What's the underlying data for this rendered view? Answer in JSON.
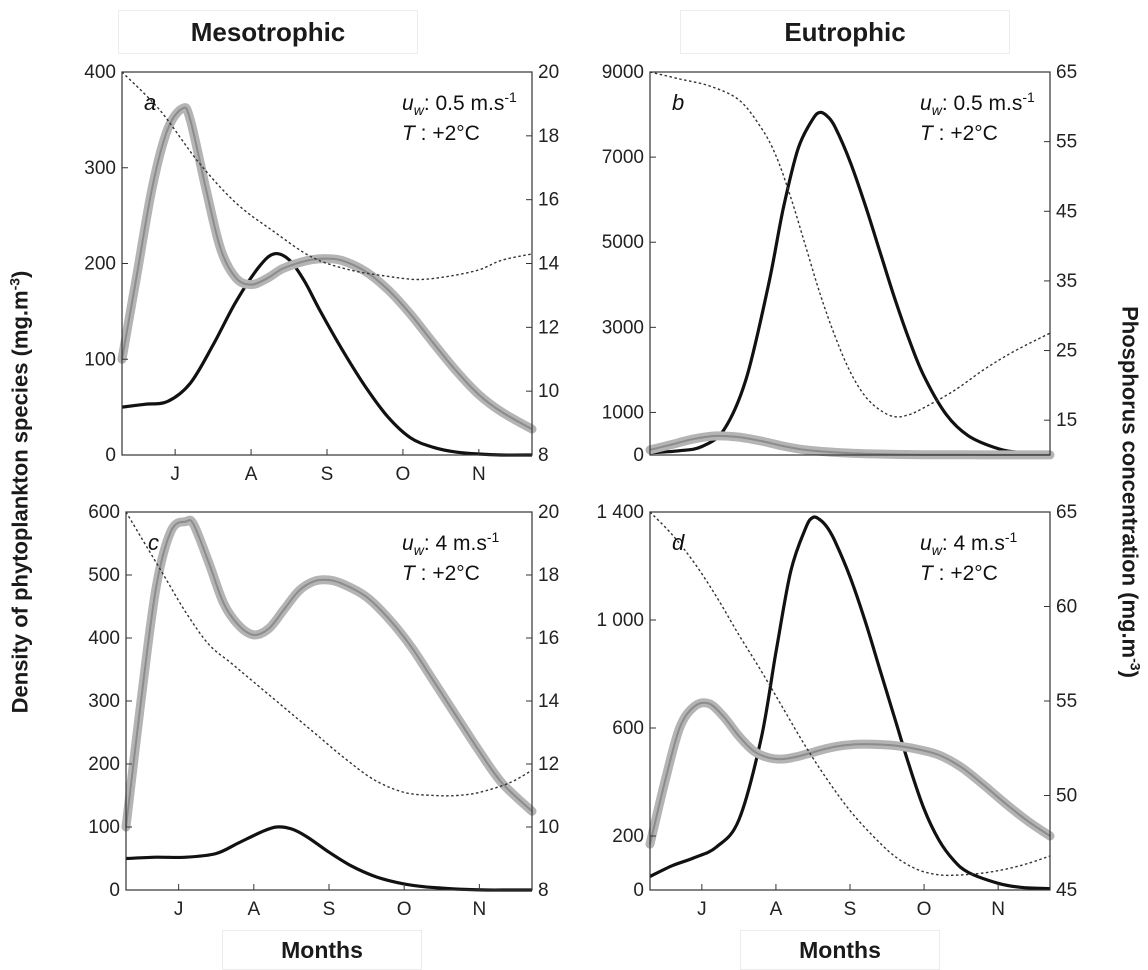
{
  "col_titles": {
    "left": "Mesotrophic",
    "right": "Eutrophic"
  },
  "ylabel_left": "Density of phytoplankton  species (mg.m-3)",
  "ylabel_right": "Phosphorus concentration  (mg.m-3)",
  "xlabel": "Months",
  "colors": {
    "species_black": "#111111",
    "species_gray": "#8c8c8c",
    "band_gray": "#b4b4b4",
    "phosphorus": "#333333"
  },
  "chart_data": [
    {
      "type": "line",
      "panel": "a",
      "column": "Mesotrophic",
      "annotation": {
        "uw": "0.5 m.s-1",
        "T": "+2°C"
      },
      "x_ticks": [
        "J",
        "A",
        "S",
        "O",
        "N"
      ],
      "x_tick_pos": [
        1,
        2,
        3,
        4,
        5
      ],
      "xlim": [
        0.3,
        5.7
      ],
      "ylim": [
        0,
        400
      ],
      "yticks": [
        "0",
        "100",
        "200",
        "300",
        "400"
      ],
      "ytick_values": [
        0,
        100,
        200,
        300,
        400
      ],
      "y2lim": [
        8,
        20
      ],
      "y2ticks": [
        "8",
        "10",
        "12",
        "14",
        "16",
        "18",
        "20"
      ],
      "y2tick_values": [
        8,
        10,
        12,
        14,
        16,
        18,
        20
      ],
      "series": [
        {
          "axis": "left",
          "style": "black",
          "x": [
            0.3,
            0.6,
            0.9,
            1.2,
            1.5,
            1.8,
            2.1,
            2.3,
            2.5,
            2.7,
            2.9,
            3.2,
            3.5,
            3.8,
            4.1,
            4.4,
            4.7,
            5.0,
            5.3,
            5.7
          ],
          "y": [
            50,
            53,
            56,
            75,
            115,
            160,
            196,
            210,
            204,
            182,
            152,
            110,
            72,
            40,
            18,
            8,
            3,
            1,
            0,
            0
          ]
        },
        {
          "axis": "left",
          "style": "gray",
          "x": [
            0.3,
            0.5,
            0.7,
            0.9,
            1.1,
            1.2,
            1.4,
            1.6,
            1.8,
            2.0,
            2.2,
            2.4,
            2.6,
            2.8,
            3.0,
            3.2,
            3.5,
            3.8,
            4.1,
            4.4,
            4.7,
            5.0,
            5.3,
            5.7
          ],
          "y": [
            100,
            190,
            280,
            340,
            362,
            350,
            280,
            215,
            185,
            178,
            184,
            194,
            200,
            204,
            205,
            203,
            192,
            173,
            147,
            117,
            88,
            63,
            45,
            27
          ]
        },
        {
          "axis": "right",
          "style": "dotted",
          "x": [
            0.3,
            0.8,
            1.3,
            1.8,
            2.3,
            2.8,
            3.3,
            3.8,
            4.2,
            4.6,
            5.0,
            5.3,
            5.7
          ],
          "y": [
            20,
            18.8,
            17.2,
            15.9,
            15.0,
            14.2,
            13.8,
            13.6,
            13.5,
            13.6,
            13.8,
            14.1,
            14.3
          ]
        }
      ]
    },
    {
      "type": "line",
      "panel": "b",
      "column": "Eutrophic",
      "annotation": {
        "uw": "0.5 m.s-1",
        "T": "+2°C"
      },
      "x_ticks": [],
      "x_tick_pos": [],
      "xlim": [
        0.3,
        5.7
      ],
      "ylim": [
        0,
        9000
      ],
      "yticks": [
        "0",
        "1000",
        "3000",
        "5000",
        "7000",
        "9000"
      ],
      "ytick_values": [
        0,
        1000,
        3000,
        5000,
        7000,
        9000
      ],
      "y2lim": [
        10,
        65
      ],
      "y2ticks": [
        "15",
        "25",
        "35",
        "45",
        "55",
        "65"
      ],
      "y2tick_values": [
        15,
        25,
        35,
        45,
        55,
        65
      ],
      "series": [
        {
          "axis": "left",
          "style": "black",
          "x": [
            0.3,
            0.7,
            1.0,
            1.3,
            1.6,
            1.9,
            2.1,
            2.3,
            2.5,
            2.6,
            2.7,
            2.8,
            3.0,
            3.2,
            3.4,
            3.6,
            3.8,
            4.0,
            4.3,
            4.6,
            5.0,
            5.3,
            5.7
          ],
          "y": [
            50,
            100,
            200,
            600,
            1800,
            4000,
            5800,
            7200,
            7900,
            8050,
            7950,
            7700,
            6900,
            5900,
            4800,
            3700,
            2700,
            1850,
            950,
            450,
            150,
            60,
            30
          ]
        },
        {
          "axis": "left",
          "style": "gray",
          "x": [
            0.3,
            0.6,
            0.9,
            1.2,
            1.5,
            1.8,
            2.1,
            2.4,
            2.8,
            3.2,
            3.6,
            4.0,
            4.6,
            5.2,
            5.7
          ],
          "y": [
            120,
            250,
            380,
            450,
            420,
            330,
            210,
            120,
            60,
            30,
            15,
            8,
            5,
            3,
            2
          ]
        },
        {
          "axis": "right",
          "style": "dotted",
          "x": [
            0.3,
            0.7,
            1.1,
            1.5,
            1.8,
            2.0,
            2.2,
            2.4,
            2.6,
            2.8,
            3.0,
            3.2,
            3.4,
            3.6,
            3.8,
            4.0,
            4.4,
            4.8,
            5.2,
            5.7
          ],
          "y": [
            65,
            64,
            63,
            61,
            57,
            53,
            47,
            40,
            33,
            27,
            22,
            18.5,
            16.5,
            15.5,
            15.8,
            16.8,
            19.2,
            22.2,
            24.8,
            27.5
          ]
        }
      ]
    },
    {
      "type": "line",
      "panel": "c",
      "column": "Mesotrophic",
      "annotation": {
        "uw": "4 m.s-1",
        "T": "+2°C"
      },
      "x_ticks": [
        "J",
        "A",
        "S",
        "O",
        "N"
      ],
      "x_tick_pos": [
        1,
        2,
        3,
        4,
        5
      ],
      "xlim": [
        0.3,
        5.7
      ],
      "ylim": [
        0,
        600
      ],
      "yticks": [
        "0",
        "100",
        "200",
        "300",
        "400",
        "500",
        "600"
      ],
      "ytick_values": [
        0,
        100,
        200,
        300,
        400,
        500,
        600
      ],
      "y2lim": [
        8,
        20
      ],
      "y2ticks": [
        "8",
        "10",
        "12",
        "14",
        "16",
        "18",
        "20"
      ],
      "y2tick_values": [
        8,
        10,
        12,
        14,
        16,
        18,
        20
      ],
      "series": [
        {
          "axis": "left",
          "style": "black",
          "x": [
            0.3,
            0.7,
            1.1,
            1.5,
            1.8,
            2.1,
            2.3,
            2.5,
            2.7,
            3.0,
            3.3,
            3.6,
            3.9,
            4.2,
            4.5,
            4.8,
            5.1,
            5.4,
            5.7
          ],
          "y": [
            50,
            52,
            52,
            58,
            75,
            92,
            100,
            97,
            85,
            60,
            38,
            22,
            12,
            6,
            3,
            1,
            0,
            0,
            0
          ]
        },
        {
          "axis": "left",
          "style": "gray",
          "x": [
            0.3,
            0.5,
            0.7,
            0.9,
            1.1,
            1.2,
            1.4,
            1.6,
            1.8,
            2.0,
            2.2,
            2.4,
            2.6,
            2.8,
            3.0,
            3.2,
            3.5,
            3.8,
            4.1,
            4.4,
            4.7,
            5.0,
            5.3,
            5.7
          ],
          "y": [
            100,
            300,
            480,
            570,
            585,
            580,
            520,
            455,
            420,
            405,
            415,
            445,
            475,
            490,
            492,
            485,
            465,
            430,
            385,
            330,
            275,
            220,
            170,
            125
          ]
        },
        {
          "axis": "right",
          "style": "dotted",
          "x": [
            0.3,
            0.5,
            0.8,
            1.1,
            1.4,
            1.7,
            2.0,
            2.4,
            2.8,
            3.2,
            3.6,
            4.0,
            4.4,
            4.7,
            5.0,
            5.4,
            5.7
          ],
          "y": [
            20,
            19.2,
            18,
            16.8,
            15.8,
            15.2,
            14.6,
            13.8,
            13.0,
            12.2,
            11.5,
            11.1,
            11.0,
            11.0,
            11.1,
            11.4,
            11.8
          ]
        }
      ]
    },
    {
      "type": "line",
      "panel": "d",
      "column": "Eutrophic",
      "annotation": {
        "uw": "4 m.s-1",
        "T": "+2°C"
      },
      "x_ticks": [
        "J",
        "A",
        "S",
        "O",
        "N"
      ],
      "x_tick_pos": [
        1,
        2,
        3,
        4,
        5
      ],
      "xlim": [
        0.3,
        5.7
      ],
      "ylim": [
        0,
        1400
      ],
      "yticks": [
        "0",
        "200",
        "600",
        "1 000",
        "1 400"
      ],
      "ytick_values": [
        0,
        200,
        600,
        1000,
        1400
      ],
      "y2lim": [
        45,
        65
      ],
      "y2ticks": [
        "45",
        "50",
        "55",
        "60",
        "65"
      ],
      "y2tick_values": [
        45,
        50,
        55,
        60,
        65
      ],
      "series": [
        {
          "axis": "left",
          "style": "black",
          "x": [
            0.3,
            0.6,
            0.9,
            1.2,
            1.5,
            1.8,
            2.0,
            2.2,
            2.4,
            2.5,
            2.6,
            2.7,
            2.8,
            3.0,
            3.2,
            3.4,
            3.6,
            3.8,
            4.0,
            4.2,
            4.4,
            4.6,
            5.0,
            5.3,
            5.7
          ],
          "y": [
            50,
            90,
            120,
            160,
            260,
            560,
            880,
            1180,
            1340,
            1380,
            1370,
            1340,
            1290,
            1160,
            1000,
            820,
            640,
            460,
            300,
            185,
            110,
            65,
            25,
            10,
            5
          ]
        },
        {
          "axis": "left",
          "style": "gray",
          "x": [
            0.3,
            0.5,
            0.7,
            0.9,
            1.1,
            1.3,
            1.5,
            1.7,
            1.9,
            2.1,
            2.3,
            2.5,
            2.7,
            2.9,
            3.1,
            3.3,
            3.6,
            3.9,
            4.2,
            4.5,
            4.8,
            5.1,
            5.4,
            5.7
          ],
          "y": [
            170,
            400,
            600,
            680,
            690,
            640,
            570,
            515,
            490,
            485,
            495,
            510,
            525,
            535,
            540,
            540,
            535,
            522,
            500,
            455,
            390,
            320,
            255,
            200
          ]
        },
        {
          "axis": "right",
          "style": "dotted",
          "x": [
            0.3,
            0.6,
            0.9,
            1.2,
            1.5,
            1.8,
            2.1,
            2.4,
            2.7,
            3.0,
            3.3,
            3.6,
            3.9,
            4.2,
            4.5,
            4.8,
            5.1,
            5.4,
            5.7
          ],
          "y": [
            65,
            63.8,
            62.3,
            60.5,
            58.5,
            56.6,
            54.6,
            52.6,
            50.8,
            49.2,
            47.9,
            46.8,
            46.1,
            45.8,
            45.8,
            45.9,
            46.1,
            46.4,
            46.8
          ]
        }
      ]
    }
  ]
}
